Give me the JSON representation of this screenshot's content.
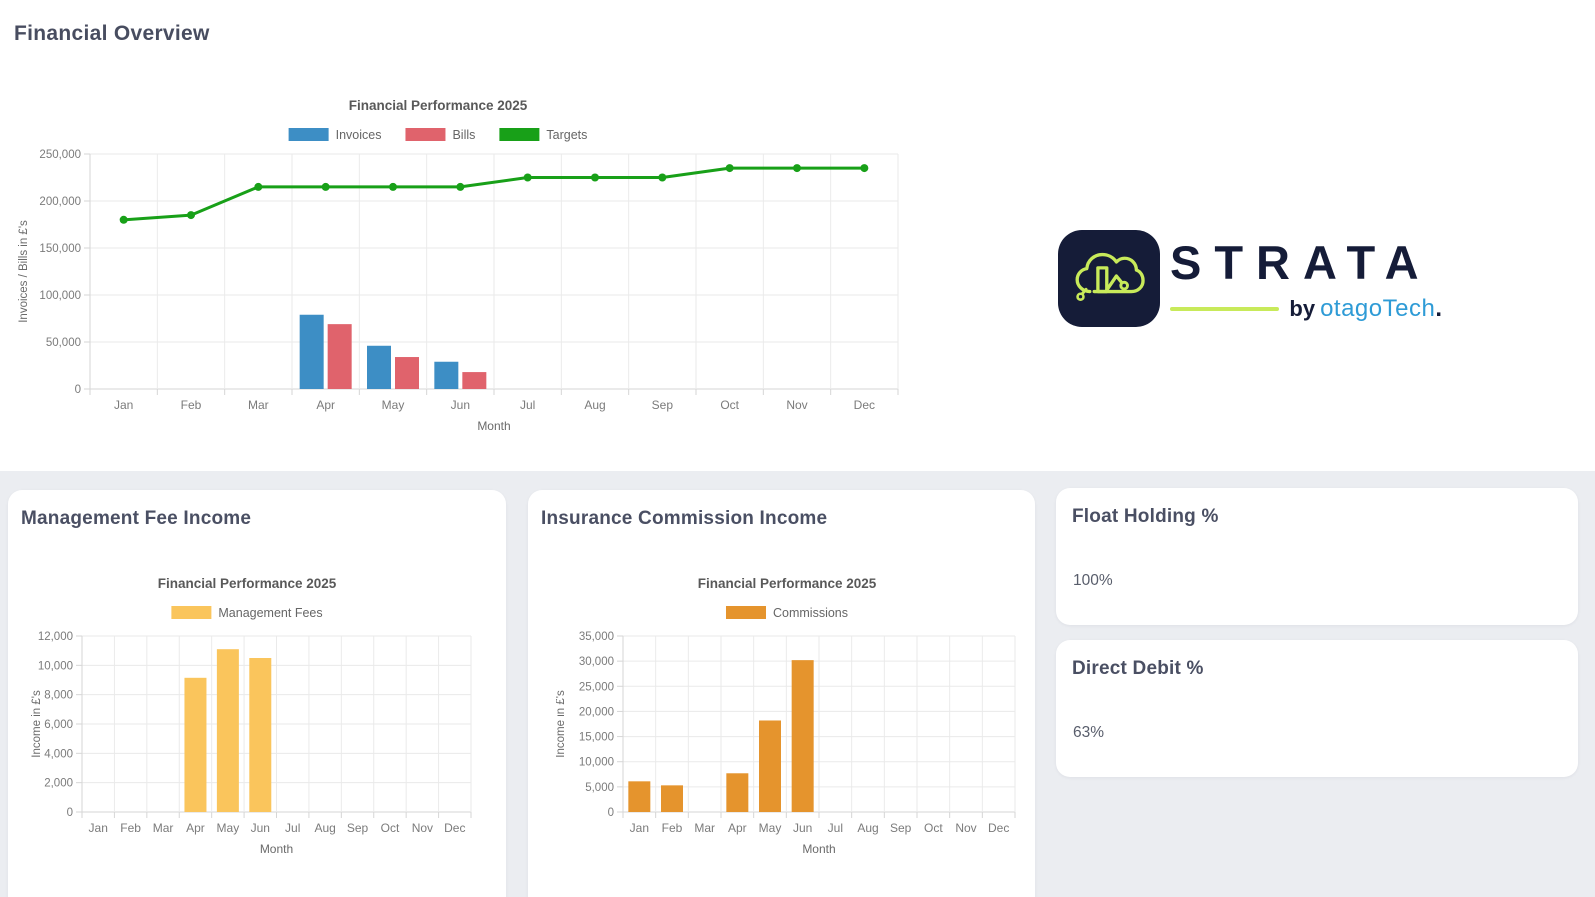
{
  "page": {
    "title": "Financial Overview"
  },
  "theme": {
    "background": "#ffffff",
    "section_background": "#EBEDF1",
    "card_background": "#ffffff",
    "heading_color": "#4A4F63",
    "value_color": "#585D6B"
  },
  "logo": {
    "brand": "STRATA",
    "byline_prefix": "by",
    "byline_brand": "otagoTech",
    "byline_suffix": ".",
    "icon": "cloud-bar-chart-icon",
    "navy": "#151C38",
    "lime": "#C8EA5A",
    "blue": "#2E9BD6"
  },
  "cards": {
    "management_fee": {
      "title": "Management Fee Income"
    },
    "insurance_commission": {
      "title": "Insurance Commission Income"
    },
    "float_holding": {
      "title": "Float Holding %",
      "value": "100%"
    },
    "direct_debit": {
      "title": "Direct Debit %",
      "value": "63%"
    }
  },
  "chart_data": [
    {
      "dom_id": "financial-overview-chart",
      "type": "bar+line",
      "title": "Financial Performance 2025",
      "categories": [
        "Jan",
        "Feb",
        "Mar",
        "Apr",
        "May",
        "Jun",
        "Jul",
        "Aug",
        "Sep",
        "Oct",
        "Nov",
        "Dec"
      ],
      "series": [
        {
          "name": "Invoices",
          "type": "bar",
          "color": "#3D8EC5",
          "values": [
            0,
            0,
            0,
            79000,
            46000,
            29000,
            0,
            0,
            0,
            0,
            0,
            0
          ]
        },
        {
          "name": "Bills",
          "type": "bar",
          "color": "#E0636C",
          "values": [
            0,
            0,
            0,
            69000,
            34000,
            18000,
            0,
            0,
            0,
            0,
            0,
            0
          ]
        },
        {
          "name": "Targets",
          "type": "line",
          "color": "#18A018",
          "values": [
            180000,
            185000,
            215000,
            215000,
            215000,
            215000,
            225000,
            225000,
            225000,
            235000,
            235000,
            235000
          ]
        }
      ],
      "xlabel": "Month",
      "ylabel": "Invoices / Bills in £'s",
      "ylim": [
        0,
        250000
      ],
      "ytick_step": 50000,
      "legend_position": "top",
      "grid": true
    },
    {
      "dom_id": "management-fees-chart",
      "type": "bar",
      "title": "Financial Performance 2025",
      "categories": [
        "Jan",
        "Feb",
        "Mar",
        "Apr",
        "May",
        "Jun",
        "Jul",
        "Aug",
        "Sep",
        "Oct",
        "Nov",
        "Dec"
      ],
      "series": [
        {
          "name": "Management Fees",
          "type": "bar",
          "color": "#FAC55C",
          "values": [
            0,
            0,
            0,
            9150,
            11100,
            10500,
            0,
            0,
            0,
            0,
            0,
            0
          ]
        }
      ],
      "xlabel": "Month",
      "ylabel": "Income in £'s",
      "ylim": [
        0,
        12000
      ],
      "ytick_step": 2000,
      "legend_position": "top",
      "grid": true
    },
    {
      "dom_id": "commissions-chart",
      "type": "bar",
      "title": "Financial Performance 2025",
      "categories": [
        "Jan",
        "Feb",
        "Mar",
        "Apr",
        "May",
        "Jun",
        "Jul",
        "Aug",
        "Sep",
        "Oct",
        "Nov",
        "Dec"
      ],
      "series": [
        {
          "name": "Commissions",
          "type": "bar",
          "color": "#E5942D",
          "values": [
            6100,
            5300,
            0,
            7700,
            18200,
            30200,
            0,
            0,
            0,
            0,
            0,
            0
          ]
        }
      ],
      "xlabel": "Month",
      "ylabel": "Income in £'s",
      "ylim": [
        0,
        35000
      ],
      "ytick_step": 5000,
      "legend_position": "top",
      "grid": true
    }
  ]
}
